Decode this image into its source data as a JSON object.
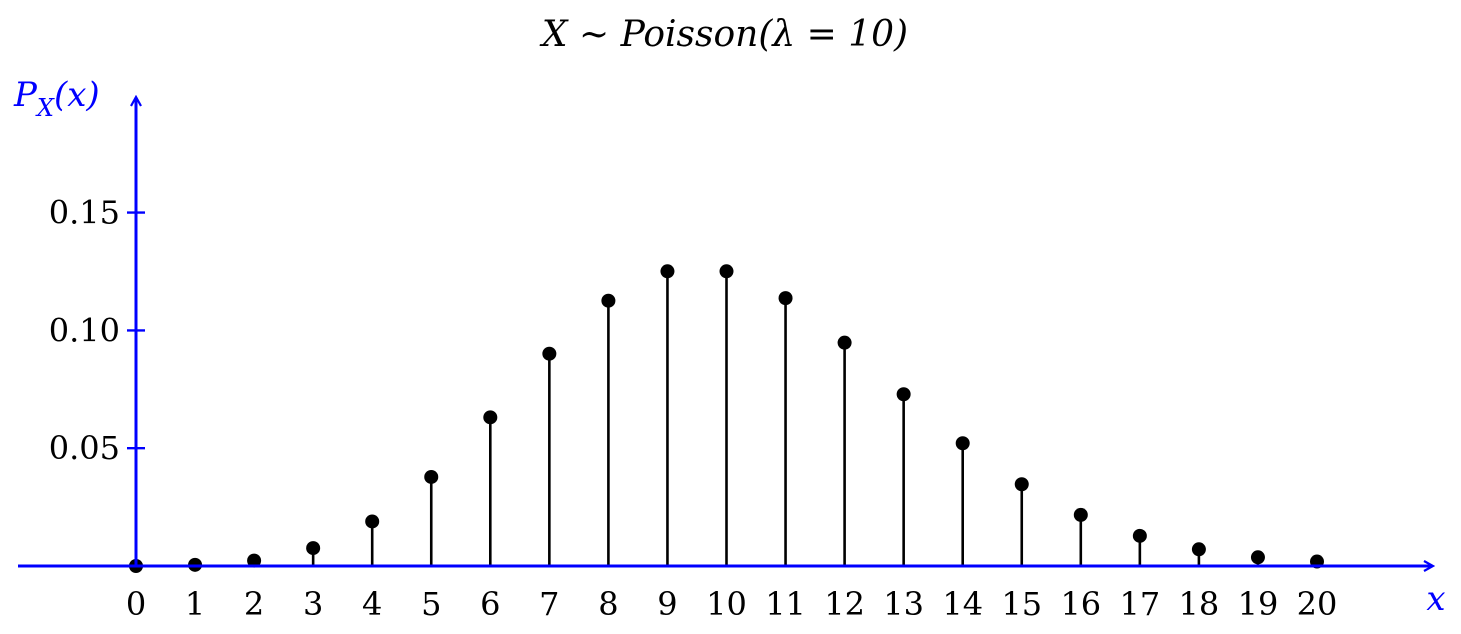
{
  "chart_data": {
    "type": "stem",
    "title": "X ∼ Poisson(λ = 10)",
    "xlabel": "x",
    "ylabel": "P_X(x)",
    "x": [
      0,
      1,
      2,
      3,
      4,
      5,
      6,
      7,
      8,
      9,
      10,
      11,
      12,
      13,
      14,
      15,
      16,
      17,
      18,
      19,
      20
    ],
    "values": [
      0.0,
      0.0005,
      0.0023,
      0.0076,
      0.0189,
      0.0378,
      0.0631,
      0.0901,
      0.1126,
      0.1251,
      0.1251,
      0.1137,
      0.0948,
      0.0729,
      0.0521,
      0.0347,
      0.0217,
      0.0128,
      0.0071,
      0.0037,
      0.0019
    ],
    "x_ticks": [
      "0",
      "1",
      "2",
      "3",
      "4",
      "5",
      "6",
      "7",
      "8",
      "9",
      "10",
      "11",
      "12",
      "13",
      "14",
      "15",
      "16",
      "17",
      "18",
      "19",
      "20"
    ],
    "y_ticks": [
      0.05,
      0.1,
      0.15
    ],
    "y_tick_labels": [
      "0.05",
      "0.10",
      "0.15"
    ],
    "xlim": [
      -2,
      21.6
    ],
    "ylim": [
      0,
      0.2
    ],
    "grid": false,
    "legend": "none",
    "axis_color": "#0000ff",
    "mark_color": "#000000"
  }
}
